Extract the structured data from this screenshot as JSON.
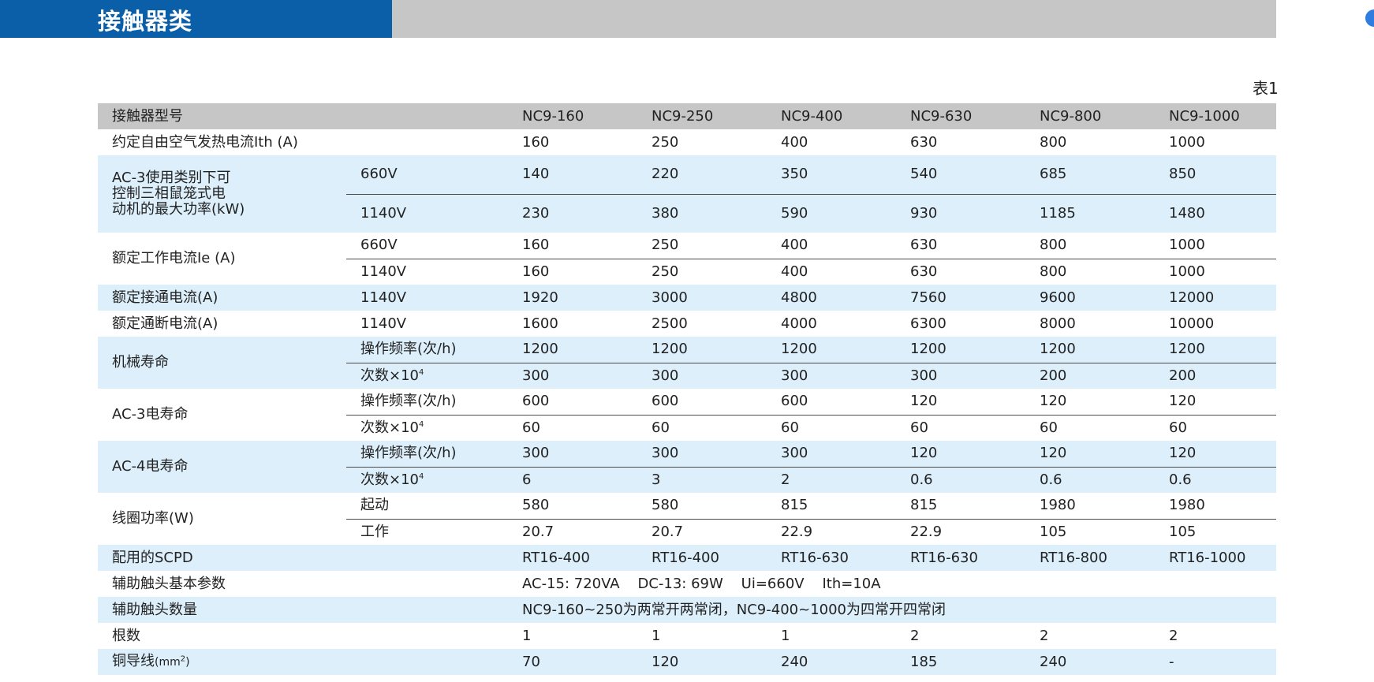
{
  "header": {
    "title": "接触器类"
  },
  "caption": "表1",
  "table": {
    "header": {
      "label": "接触器型号",
      "models": [
        "NC9-160",
        "NC9-250",
        "NC9-400",
        "NC9-630",
        "NC9-800",
        "NC9-1000"
      ]
    },
    "thermal_current": {
      "label": "约定自由空气发热电流Ith (A)",
      "values": [
        "160",
        "250",
        "400",
        "630",
        "800",
        "1000"
      ]
    },
    "max_power": {
      "label_lines": [
        "AC-3使用类别下可",
        "控制三相鼠笼式电",
        "动机的最大功率(kW)"
      ],
      "rows": [
        {
          "sub": "660V",
          "values": [
            "140",
            "220",
            "350",
            "540",
            "685",
            "850"
          ]
        },
        {
          "sub": "1140V",
          "values": [
            "230",
            "380",
            "590",
            "930",
            "1185",
            "1480"
          ]
        }
      ]
    },
    "rated_current": {
      "label": "额定工作电流Ie (A)",
      "rows": [
        {
          "sub": "660V",
          "values": [
            "160",
            "250",
            "400",
            "630",
            "800",
            "1000"
          ]
        },
        {
          "sub": "1140V",
          "values": [
            "160",
            "250",
            "400",
            "630",
            "800",
            "1000"
          ]
        }
      ]
    },
    "making_current": {
      "label": "额定接通电流(A)",
      "sub": "1140V",
      "values": [
        "1920",
        "3000",
        "4800",
        "7560",
        "9600",
        "12000"
      ]
    },
    "breaking_current": {
      "label": "额定通断电流(A)",
      "sub": "1140V",
      "values": [
        "1600",
        "2500",
        "4000",
        "6300",
        "8000",
        "10000"
      ]
    },
    "mech_life": {
      "label": "机械寿命",
      "rows": [
        {
          "sub": "操作频率(次/h)",
          "values": [
            "1200",
            "1200",
            "1200",
            "1200",
            "1200",
            "1200"
          ]
        },
        {
          "sub": "次数×10",
          "sup": "4",
          "values": [
            "300",
            "300",
            "300",
            "300",
            "200",
            "200"
          ]
        }
      ]
    },
    "ac3_life": {
      "label": "AC-3电寿命",
      "rows": [
        {
          "sub": "操作频率(次/h)",
          "values": [
            "600",
            "600",
            "600",
            "120",
            "120",
            "120"
          ]
        },
        {
          "sub": "次数×10",
          "sup": "4",
          "values": [
            "60",
            "60",
            "60",
            "60",
            "60",
            "60"
          ]
        }
      ]
    },
    "ac4_life": {
      "label": "AC-4电寿命",
      "rows": [
        {
          "sub": "操作频率(次/h)",
          "values": [
            "300",
            "300",
            "300",
            "120",
            "120",
            "120"
          ]
        },
        {
          "sub": "次数×10",
          "sup": "4",
          "values": [
            "6",
            "3",
            "2",
            "0.6",
            "0.6",
            "0.6"
          ]
        }
      ]
    },
    "coil_power": {
      "label": "线圈功率(W)",
      "rows": [
        {
          "sub": "起动",
          "values": [
            "580",
            "580",
            "815",
            "815",
            "1980",
            "1980"
          ]
        },
        {
          "sub": "工作",
          "values": [
            "20.7",
            "20.7",
            "22.9",
            "22.9",
            "105",
            "105"
          ]
        }
      ]
    },
    "scpd": {
      "label": "配用的SCPD",
      "values": [
        "RT16-400",
        "RT16-400",
        "RT16-630",
        "RT16-630",
        "RT16-800",
        "RT16-1000"
      ]
    },
    "aux_params": {
      "label": "辅助触头基本参数",
      "text": "AC-15: 720VA    DC-13: 69W    Ui=660V    Ith=10A"
    },
    "aux_count": {
      "label": "辅助触头数量",
      "text": "NC9-160~250为两常开两常闭，NC9-400~1000为四常开四常闭"
    },
    "roots": {
      "label": "根数",
      "values": [
        "1",
        "1",
        "1",
        "2",
        "2",
        "2"
      ]
    },
    "copper": {
      "label": "铜导线",
      "unit_base": "(mm",
      "unit_sup": "2",
      "unit_end": ")",
      "values": [
        "70",
        "120",
        "240",
        "185",
        "240",
        "-"
      ]
    }
  },
  "colors": {
    "title_bar": "#0b5ea8",
    "header_band": "#c6c6c6",
    "row_blue": "#dceffb"
  }
}
